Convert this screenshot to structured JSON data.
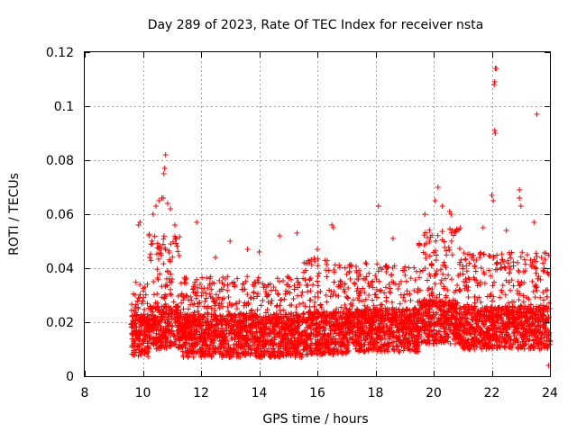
{
  "chart_data": {
    "type": "scatter",
    "title": "Day 289 of 2023, Rate Of TEC Index for receiver nsta",
    "xlabel": "GPS time / hours",
    "ylabel": "ROTI / TECUs",
    "xlim": [
      8,
      24
    ],
    "ylim": [
      0,
      0.12
    ],
    "x_ticks": [
      "8",
      "10",
      "12",
      "14",
      "16",
      "18",
      "20",
      "22",
      "24"
    ],
    "y_ticks": [
      "0",
      "0.02",
      "0.04",
      "0.06",
      "0.08",
      "0.1",
      "0.12"
    ],
    "x_tick_values": [
      8,
      10,
      12,
      14,
      16,
      18,
      20,
      22,
      24
    ],
    "y_tick_values": [
      0,
      0.02,
      0.04,
      0.06,
      0.08,
      0.1,
      0.12
    ],
    "grid": true,
    "marker": "+",
    "color": "#ff0000",
    "series": [
      {
        "name": "ROTI",
        "segments": [
          {
            "x_start": 9.6,
            "x_end": 10.2,
            "base": 0.015,
            "spread": 0.02
          },
          {
            "x_start": 10.2,
            "x_end": 11.3,
            "base": 0.018,
            "spread": 0.035
          },
          {
            "x_start": 11.3,
            "x_end": 15.5,
            "base": 0.015,
            "spread": 0.022
          },
          {
            "x_start": 15.5,
            "x_end": 17.0,
            "base": 0.016,
            "spread": 0.028
          },
          {
            "x_start": 17.0,
            "x_end": 19.5,
            "base": 0.017,
            "spread": 0.025
          },
          {
            "x_start": 19.5,
            "x_end": 21.0,
            "base": 0.02,
            "spread": 0.035
          },
          {
            "x_start": 21.0,
            "x_end": 24.0,
            "base": 0.018,
            "spread": 0.028
          }
        ],
        "peaks": [
          [
            9.85,
            0.056
          ],
          [
            9.9,
            0.057
          ],
          [
            10.35,
            0.06
          ],
          [
            10.45,
            0.063
          ],
          [
            10.55,
            0.065
          ],
          [
            10.65,
            0.066
          ],
          [
            10.7,
            0.066
          ],
          [
            10.72,
            0.075
          ],
          [
            10.75,
            0.077
          ],
          [
            10.78,
            0.082
          ],
          [
            10.85,
            0.064
          ],
          [
            10.95,
            0.062
          ],
          [
            11.1,
            0.056
          ],
          [
            11.85,
            0.057
          ],
          [
            12.5,
            0.044
          ],
          [
            13.0,
            0.05
          ],
          [
            13.6,
            0.047
          ],
          [
            14.0,
            0.046
          ],
          [
            14.7,
            0.052
          ],
          [
            15.3,
            0.053
          ],
          [
            16.0,
            0.047
          ],
          [
            16.5,
            0.056
          ],
          [
            16.55,
            0.055
          ],
          [
            18.1,
            0.063
          ],
          [
            18.6,
            0.051
          ],
          [
            19.7,
            0.06
          ],
          [
            20.05,
            0.065
          ],
          [
            20.15,
            0.07
          ],
          [
            20.3,
            0.063
          ],
          [
            20.55,
            0.061
          ],
          [
            20.6,
            0.06
          ],
          [
            21.7,
            0.055
          ],
          [
            22.0,
            0.067
          ],
          [
            22.05,
            0.065
          ],
          [
            22.1,
            0.091
          ],
          [
            22.12,
            0.09
          ],
          [
            22.08,
            0.108
          ],
          [
            22.1,
            0.109
          ],
          [
            22.12,
            0.114
          ],
          [
            22.15,
            0.114
          ],
          [
            22.5,
            0.054
          ],
          [
            22.95,
            0.069
          ],
          [
            22.95,
            0.066
          ],
          [
            23.0,
            0.063
          ],
          [
            23.45,
            0.057
          ],
          [
            23.55,
            0.097
          ],
          [
            23.8,
            0.04
          ],
          [
            23.95,
            0.004
          ]
        ]
      }
    ]
  }
}
